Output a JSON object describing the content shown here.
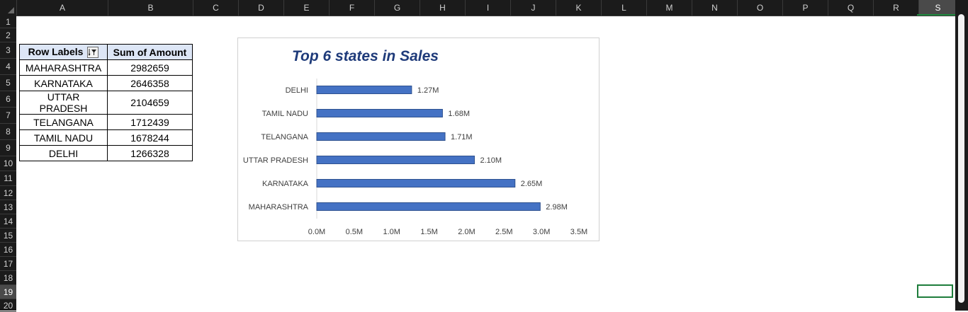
{
  "sheet": {
    "columns": [
      "A",
      "B",
      "C",
      "D",
      "E",
      "F",
      "G",
      "H",
      "I",
      "J",
      "K",
      "L",
      "M",
      "N",
      "O",
      "P",
      "Q",
      "R",
      "S"
    ],
    "rows": [
      "1",
      "2",
      "3",
      "4",
      "5",
      "6",
      "7",
      "8",
      "9",
      "10",
      "11",
      "12",
      "13",
      "14",
      "15",
      "16",
      "17",
      "18",
      "19",
      "20"
    ],
    "selected_column": "S",
    "selected_row": "19"
  },
  "pivot": {
    "header_row_labels": "Row Labels",
    "header_sum": "Sum of Amount",
    "rows": [
      {
        "label": "MAHARASHTRA",
        "value": "2982659"
      },
      {
        "label": "KARNATAKA",
        "value": "2646358"
      },
      {
        "label": "UTTAR PRADESH",
        "value": "2104659"
      },
      {
        "label": "TELANGANA",
        "value": "1712439"
      },
      {
        "label": "TAMIL NADU",
        "value": "1678244"
      },
      {
        "label": "DELHI",
        "value": "1266328"
      }
    ]
  },
  "chart_data": {
    "type": "bar",
    "orientation": "horizontal",
    "title": "Top 6 states in Sales",
    "categories": [
      "DELHI",
      "TAMIL NADU",
      "TELANGANA",
      "UTTAR PRADESH",
      "KARNATAKA",
      "MAHARASHTRA"
    ],
    "values": [
      1266328,
      1678244,
      1712439,
      2104659,
      2646358,
      2982659
    ],
    "data_labels": [
      "1.27M",
      "1.68M",
      "1.71M",
      "2.10M",
      "2.65M",
      "2.98M"
    ],
    "x_ticks": [
      "0.0M",
      "0.5M",
      "1.0M",
      "1.5M",
      "2.0M",
      "2.5M",
      "3.0M",
      "3.5M"
    ],
    "xlim": [
      0,
      3500000
    ],
    "bar_color": "#4472c4",
    "bar_edge_color": "#2f528f",
    "gridlines": false,
    "legend": "none"
  },
  "colors": {
    "header_bg": "#1b1b1b",
    "pivot_header_bg": "#dde6f6",
    "title_color": "#1f3b7a",
    "active_cell_border": "#1e7d3b"
  }
}
